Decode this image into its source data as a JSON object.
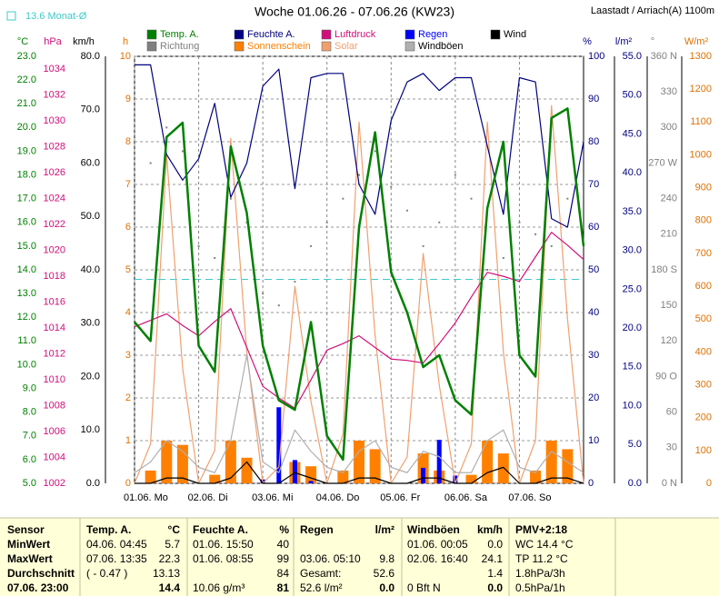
{
  "chart_data": {
    "type": "line",
    "title": "Woche 01.06.26 - 07.06.26 (KW23)",
    "location": "Laastadt / Arriach(A) 1100m",
    "reference_line": {
      "label": "13.6 Monat-Ø",
      "value": 13.6,
      "axis": 0,
      "color": "#40c8c8"
    },
    "x": [
      0,
      6,
      12,
      18,
      24,
      30,
      36,
      42,
      48,
      54,
      60,
      66,
      72,
      78,
      84,
      90,
      96,
      102,
      108,
      114,
      120,
      126,
      132,
      138,
      144,
      150,
      156,
      162,
      168
    ],
    "xlim": [
      0,
      168
    ],
    "xticks": [
      {
        "value": 0,
        "label": "01.06. Mo"
      },
      {
        "value": 24,
        "label": "02.06. Di"
      },
      {
        "value": 48,
        "label": "03.06. Mi"
      },
      {
        "value": 72,
        "label": "04.06. Do"
      },
      {
        "value": 96,
        "label": "05.06. Fr"
      },
      {
        "value": 120,
        "label": "06.06. Sa"
      },
      {
        "value": 144,
        "label": "07.06. So"
      }
    ],
    "grid": true,
    "axes": [
      {
        "unit": "°C",
        "color": "#008000",
        "lim": [
          5,
          23
        ],
        "ticks": [
          {
            "value": 5,
            "label": "5.0"
          },
          {
            "value": 6,
            "label": "6.0"
          },
          {
            "value": 7,
            "label": "7.0"
          },
          {
            "value": 8,
            "label": "8.0"
          },
          {
            "value": 9,
            "label": "9.0"
          },
          {
            "value": 10,
            "label": "10.0"
          },
          {
            "value": 11,
            "label": "11.0"
          },
          {
            "value": 12,
            "label": "12.0"
          },
          {
            "value": 13,
            "label": "13.0"
          },
          {
            "value": 14,
            "label": "14.0"
          },
          {
            "value": 15,
            "label": "15.0"
          },
          {
            "value": 16,
            "label": "16.0"
          },
          {
            "value": 17,
            "label": "17.0"
          },
          {
            "value": 18,
            "label": "18.0"
          },
          {
            "value": 19,
            "label": "19.0"
          },
          {
            "value": 20,
            "label": "20.0"
          },
          {
            "value": 21,
            "label": "21.0"
          },
          {
            "value": 22,
            "label": "22.0"
          },
          {
            "value": 23,
            "label": "23.0"
          }
        ]
      },
      {
        "unit": "hPa",
        "color": "#d0107a",
        "lim": [
          1002,
          1035
        ],
        "ticks": [
          1002,
          1004,
          1006,
          1008,
          1010,
          1012,
          1014,
          1016,
          1018,
          1020,
          1022,
          1024,
          1026,
          1028,
          1030,
          1032,
          1034
        ]
      },
      {
        "unit": "km/h",
        "color": "#000000",
        "lim": [
          0,
          80
        ],
        "ticks": [
          {
            "value": 0,
            "label": "0.0"
          },
          {
            "value": 10,
            "label": "10.0"
          },
          {
            "value": 20,
            "label": "20.0"
          },
          {
            "value": 30,
            "label": "30.0"
          },
          {
            "value": 40,
            "label": "40.0"
          },
          {
            "value": 50,
            "label": "50.0"
          },
          {
            "value": 60,
            "label": "60.0"
          },
          {
            "value": 70,
            "label": "70.0"
          },
          {
            "value": 80,
            "label": "80.0"
          }
        ]
      },
      {
        "unit": "h",
        "color": "#e07000",
        "lim": [
          0,
          10
        ],
        "ticks": [
          0,
          1,
          2,
          3,
          4,
          5,
          6,
          7,
          8,
          9,
          10
        ]
      },
      {
        "unit": "%",
        "color": "#000080",
        "lim": [
          0,
          100
        ],
        "ticks": [
          0,
          10,
          20,
          30,
          40,
          50,
          60,
          70,
          80,
          90,
          100
        ]
      },
      {
        "unit": "l/m²",
        "color": "#000080",
        "lim": [
          0,
          55
        ],
        "ticks": [
          {
            "value": 0,
            "label": "0.0"
          },
          {
            "value": 5,
            "label": "5.0"
          },
          {
            "value": 10,
            "label": "10.0"
          },
          {
            "value": 15,
            "label": "15.0"
          },
          {
            "value": 20,
            "label": "20.0"
          },
          {
            "value": 25,
            "label": "25.0"
          },
          {
            "value": 30,
            "label": "30.0"
          },
          {
            "value": 35,
            "label": "35.0"
          },
          {
            "value": 40,
            "label": "40.0"
          },
          {
            "value": 45,
            "label": "45.0"
          },
          {
            "value": 50,
            "label": "50.0"
          },
          {
            "value": 55,
            "label": "55.0"
          }
        ]
      },
      {
        "unit": "°",
        "color": "#808080",
        "lim": [
          0,
          360
        ],
        "ticks": [
          {
            "value": 0,
            "label": "0 N"
          },
          30,
          60,
          {
            "value": 90,
            "label": "90 O"
          },
          120,
          150,
          {
            "value": 180,
            "label": "180 S"
          },
          210,
          240,
          {
            "value": 270,
            "label": "270 W"
          },
          300,
          330,
          {
            "value": 360,
            "label": "360 N"
          }
        ]
      },
      {
        "unit": "W/m²",
        "color": "#e07000",
        "lim": [
          0,
          1300
        ],
        "ticks": [
          0,
          100,
          200,
          300,
          400,
          500,
          600,
          700,
          800,
          900,
          1000,
          1100,
          1200,
          1300
        ]
      }
    ],
    "series": [
      {
        "name": "Temp. A.",
        "color": "#008000",
        "kind": "line",
        "axis": 0,
        "values": [
          11.8,
          11.0,
          19.6,
          20.2,
          10.8,
          9.7,
          19.2,
          16.4,
          10.8,
          8.5,
          8.1,
          11.8,
          7.0,
          6.0,
          15.8,
          19.8,
          13.9,
          12.2,
          9.9,
          10.4,
          8.5,
          7.9,
          16.6,
          19.4,
          10.4,
          9.5,
          20.4,
          20.8,
          15.0
        ]
      },
      {
        "name": "Feuchte A.",
        "color": "#000080",
        "kind": "line",
        "axis": 4,
        "values": [
          98,
          98,
          77,
          71,
          76,
          89,
          67,
          75,
          93,
          97,
          69,
          95,
          96,
          96,
          70,
          63,
          85,
          94,
          96,
          92,
          95,
          95,
          79,
          63,
          95,
          94,
          62,
          60,
          80
        ]
      },
      {
        "name": "Luftdruck",
        "color": "#d0107a",
        "kind": "line",
        "axis": 1,
        "values": [
          1014.1,
          1014.6,
          1015.1,
          1014.2,
          1013.4,
          1014.5,
          1015.5,
          1012.5,
          1009.5,
          1008.6,
          1007.8,
          1010,
          1012.3,
          1012.8,
          1013.4,
          1012.5,
          1011.6,
          1011.5,
          1011.3,
          1012.8,
          1014.4,
          1016.4,
          1018.3,
          1018,
          1017.6,
          1019.5,
          1021.4,
          1020.4,
          1019.3
        ]
      },
      {
        "name": "Regen",
        "color": "#0000ff",
        "kind": "bar",
        "axis": 5,
        "values": [
          0,
          0,
          0,
          0,
          0,
          0,
          0,
          0,
          0.5,
          9.8,
          3,
          0.3,
          0,
          0,
          0,
          0,
          0,
          0,
          2,
          5.6,
          1,
          0,
          0,
          0,
          0,
          0,
          0,
          0,
          0
        ]
      },
      {
        "name": "Wind",
        "color": "#000000",
        "kind": "line",
        "axis": 2,
        "values": [
          0,
          0,
          1,
          1,
          0,
          0,
          1,
          4,
          0,
          0,
          2,
          1,
          0,
          0,
          1,
          1,
          0,
          0,
          1,
          1,
          0,
          0,
          2,
          3,
          0,
          0,
          1,
          1,
          0
        ]
      },
      {
        "name": "Richtung",
        "color": "#808080",
        "kind": "dots",
        "axis": 6,
        "values": [
          250,
          270,
          300,
          280,
          200,
          190,
          240,
          220,
          160,
          150,
          170,
          200,
          220,
          240,
          260,
          280,
          250,
          230,
          200,
          220,
          260,
          240,
          180,
          190,
          220,
          210,
          200,
          240,
          260
        ]
      },
      {
        "name": "Sonnenschein",
        "color": "#ff8000",
        "kind": "bar",
        "axis": 3,
        "values": [
          0,
          0.3,
          1,
          0.9,
          0,
          0.2,
          1,
          0.6,
          0,
          0,
          0.5,
          0.4,
          0,
          0.3,
          1,
          0.8,
          0,
          0,
          0.7,
          0.3,
          0,
          0.2,
          1,
          0.7,
          0,
          0.3,
          1,
          0.8,
          0
        ]
      },
      {
        "name": "Solar",
        "color": "#f0a070",
        "kind": "line",
        "axis": 7,
        "values": [
          0,
          120,
          1000,
          350,
          0,
          100,
          1050,
          400,
          0,
          50,
          600,
          250,
          0,
          150,
          1100,
          450,
          0,
          80,
          700,
          300,
          0,
          120,
          1100,
          400,
          0,
          130,
          1150,
          500,
          0
        ]
      },
      {
        "name": "Windböen",
        "color": "#b0b0b0",
        "kind": "line",
        "axis": 2,
        "values": [
          2,
          4,
          8,
          6,
          3,
          2,
          8,
          24,
          4,
          2,
          10,
          6,
          3,
          2,
          6,
          8,
          3,
          2,
          6,
          5,
          2,
          2,
          8,
          10,
          3,
          2,
          6,
          4,
          2
        ]
      }
    ]
  },
  "table": {
    "rows": [
      [
        "Sensor",
        "Temp. A.",
        "°C",
        "Feuchte A.",
        "%",
        "Regen",
        "l/m²",
        "Windböen",
        "km/h",
        "PMV+2:18"
      ],
      [
        "MinWert",
        "04.06.  04:45",
        "5.7",
        "01.06.  15:50",
        "40",
        null,
        null,
        "01.06.  00:05",
        "0.0",
        "WC 14.4 °C"
      ],
      [
        "MaxWert",
        "07.06.  13:35",
        "22.3",
        "01.06.  08:55",
        "99",
        "03.06.  05:10",
        "9.8",
        "02.06.  16:40",
        "24.1",
        "TP 11.2 °C"
      ],
      [
        "Durchschnitt",
        "( - 0.47 )",
        "13.13",
        null,
        "84",
        "Gesamt:",
        "52.6",
        null,
        "1.4",
        "1.8hPa/3h"
      ],
      [
        "07.06. 23:00",
        null,
        "14.4",
        "10.06 g/m³",
        "81",
        "52.6 l/m²",
        "0.0",
        "0 Bft N",
        "0.0",
        "0.5hPa/1h"
      ]
    ]
  }
}
